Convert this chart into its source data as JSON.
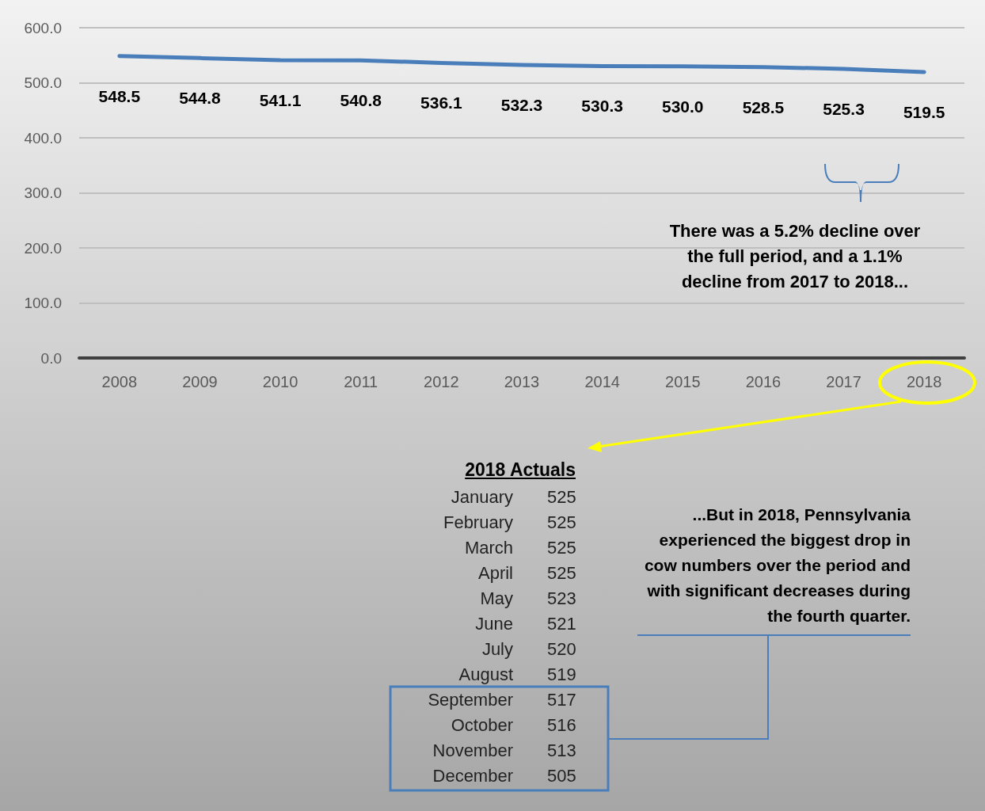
{
  "chart_data": [
    {
      "type": "line",
      "categories": [
        "2008",
        "2009",
        "2010",
        "2011",
        "2012",
        "2013",
        "2014",
        "2015",
        "2016",
        "2017",
        "2018"
      ],
      "values": [
        548.5,
        544.8,
        541.1,
        540.8,
        536.1,
        532.3,
        530.3,
        530.0,
        528.5,
        525.3,
        519.5
      ],
      "value_labels": [
        "548.5",
        "544.8",
        "541.1",
        "540.8",
        "536.1",
        "532.3",
        "530.3",
        "530.0",
        "528.5",
        "525.3",
        "519.5"
      ],
      "color": "#4a7ebb",
      "marker": "none",
      "line_style": "solid",
      "grid": "y",
      "ylim": [
        0,
        600
      ],
      "yticks": [
        {
          "value": 0,
          "label": "0.0"
        },
        {
          "value": 100,
          "label": "100.0"
        },
        {
          "value": 200,
          "label": "200.0"
        },
        {
          "value": 300,
          "label": "300.0"
        },
        {
          "value": 400,
          "label": "400.0"
        },
        {
          "value": 500,
          "label": "500.0"
        },
        {
          "value": 600,
          "label": "600.0"
        }
      ],
      "annotations": [
        "There was a 5.2% decline over the full period, and a 1.1% decline from 2017 to 2018..."
      ]
    },
    {
      "type": "other",
      "title": "2018 Actuals",
      "categories": [
        "January",
        "February",
        "March",
        "April",
        "May",
        "June",
        "July",
        "August",
        "September",
        "October",
        "November",
        "December"
      ],
      "values": [
        525,
        525,
        525,
        525,
        523,
        521,
        520,
        519,
        517,
        516,
        513,
        505
      ],
      "data_labels": true,
      "annotations": [
        "...But in 2018, Pennsylvania experienced the biggest drop in cow numbers over the period and with significant decreases during the fourth quarter."
      ]
    }
  ]
}
